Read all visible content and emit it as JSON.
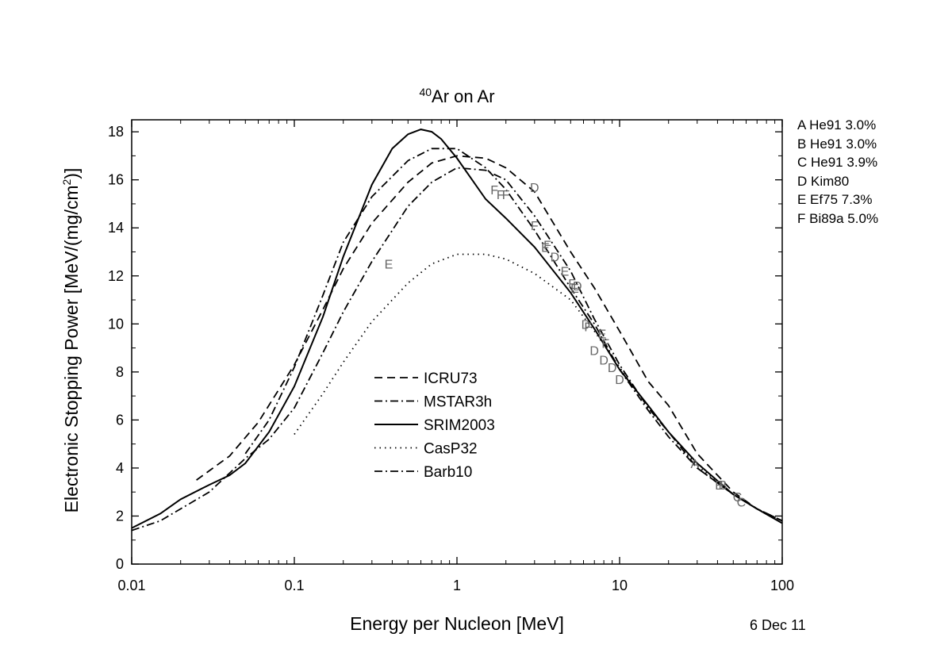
{
  "chart_data": {
    "type": "line",
    "title_sup": "40",
    "title_main": "Ar on Ar",
    "xlabel": "Energy per Nucleon [MeV]",
    "ylabel_prefix": "Electronic Stopping Power [MeV/(mg/cm",
    "ylabel_sup": "2",
    "ylabel_suffix": ")]",
    "x_scale": "log",
    "xlim": [
      0.01,
      100
    ],
    "ylim": [
      0,
      18.5
    ],
    "x_ticks": [
      0.01,
      0.1,
      1,
      10,
      100
    ],
    "x_tick_labels": [
      "0.01",
      "0.1",
      "1",
      "10",
      "100"
    ],
    "y_ticks": [
      0,
      2,
      4,
      6,
      8,
      10,
      12,
      14,
      16,
      18
    ],
    "y_tick_labels": [
      "0",
      "2",
      "4",
      "6",
      "8",
      "10",
      "12",
      "14",
      "16",
      "18"
    ],
    "grid": false,
    "legend_position": "center-bottom",
    "series": [
      {
        "name": "ICRU73",
        "style": "dash",
        "x": [
          0.025,
          0.04,
          0.06,
          0.1,
          0.15,
          0.2,
          0.3,
          0.5,
          0.7,
          1.0,
          1.5,
          2.0,
          3.0,
          5.0,
          7.0,
          10,
          15,
          20,
          30,
          50,
          70,
          100
        ],
        "y": [
          3.5,
          4.5,
          5.9,
          8.3,
          10.6,
          12.3,
          14.2,
          15.9,
          16.7,
          17.0,
          16.9,
          16.5,
          15.5,
          13.0,
          11.5,
          9.7,
          7.6,
          6.6,
          4.6,
          3.0,
          2.3,
          1.8
        ]
      },
      {
        "name": "MSTAR3h",
        "style": "dashdot",
        "x": [
          0.05,
          0.07,
          0.1,
          0.15,
          0.2,
          0.3,
          0.5,
          0.7,
          1.0,
          1.5,
          2.0,
          3.0,
          5.0,
          7.0,
          10,
          15,
          20,
          30,
          50,
          70,
          100
        ],
        "y": [
          4.6,
          6.0,
          8.2,
          11.2,
          13.4,
          15.3,
          16.8,
          17.3,
          17.3,
          16.5,
          15.6,
          13.9,
          11.5,
          10.0,
          8.1,
          6.4,
          5.3,
          4.0,
          2.9,
          2.3,
          1.8
        ]
      },
      {
        "name": "SRIM2003",
        "style": "solid",
        "x": [
          0.01,
          0.015,
          0.02,
          0.03,
          0.04,
          0.05,
          0.07,
          0.1,
          0.15,
          0.2,
          0.3,
          0.4,
          0.5,
          0.6,
          0.7,
          0.8,
          1.0,
          1.5,
          2.0,
          3.0,
          5.0,
          7.0,
          10,
          15,
          20,
          30,
          50,
          70,
          100
        ],
        "y": [
          1.5,
          2.1,
          2.7,
          3.3,
          3.7,
          4.2,
          5.5,
          7.4,
          10.3,
          12.8,
          15.8,
          17.3,
          17.9,
          18.1,
          18.0,
          17.7,
          16.9,
          15.2,
          14.4,
          13.2,
          11.3,
          9.8,
          8.1,
          6.6,
          5.5,
          4.2,
          2.9,
          2.3,
          1.7
        ]
      },
      {
        "name": "CasP32",
        "style": "dot",
        "x": [
          0.1,
          0.15,
          0.2,
          0.3,
          0.5,
          0.7,
          1.0,
          1.5,
          2.0,
          3.0,
          5.0,
          7.0,
          10,
          15,
          20,
          30,
          50,
          70,
          100
        ],
        "y": [
          5.4,
          7.1,
          8.4,
          10.1,
          11.7,
          12.5,
          12.9,
          12.9,
          12.7,
          12.1,
          11.0,
          9.7,
          8.2,
          6.5,
          5.5,
          4.1,
          2.9,
          2.3,
          1.8
        ]
      },
      {
        "name": "Barb10",
        "style": "dashdot",
        "x": [
          0.01,
          0.015,
          0.02,
          0.03,
          0.05,
          0.07,
          0.1,
          0.15,
          0.2,
          0.3,
          0.5,
          0.7,
          1.0,
          1.5,
          2.0,
          3.0,
          5.0,
          7.0,
          10,
          15,
          20,
          30,
          50,
          70,
          100
        ],
        "y": [
          1.4,
          1.8,
          2.3,
          3.0,
          4.4,
          5.2,
          6.5,
          8.8,
          10.5,
          12.6,
          14.9,
          15.9,
          16.5,
          16.4,
          16.0,
          14.5,
          12.2,
          10.2,
          8.3,
          6.5,
          5.5,
          4.0,
          2.9,
          2.3,
          1.8
        ]
      }
    ],
    "markers": [
      {
        "label": "A",
        "x": 29,
        "y": 4.2
      },
      {
        "label": "B",
        "x": 41,
        "y": 3.3
      },
      {
        "label": "B",
        "x": 43,
        "y": 3.3
      },
      {
        "label": "C",
        "x": 53,
        "y": 2.8
      },
      {
        "label": "C",
        "x": 56,
        "y": 2.6
      },
      {
        "label": "D",
        "x": 3.0,
        "y": 15.7
      },
      {
        "label": "D",
        "x": 4.0,
        "y": 12.8
      },
      {
        "label": "D",
        "x": 5.5,
        "y": 11.6
      },
      {
        "label": "D",
        "x": 6.2,
        "y": 10.0
      },
      {
        "label": "D",
        "x": 7.0,
        "y": 8.9
      },
      {
        "label": "D",
        "x": 8.0,
        "y": 8.5
      },
      {
        "label": "D",
        "x": 9.0,
        "y": 8.2
      },
      {
        "label": "D",
        "x": 10.0,
        "y": 7.7
      },
      {
        "label": "E",
        "x": 0.38,
        "y": 12.5
      },
      {
        "label": "E",
        "x": 3.5,
        "y": 13.2
      },
      {
        "label": "E",
        "x": 4.6,
        "y": 12.2
      },
      {
        "label": "E",
        "x": 5.3,
        "y": 11.5
      },
      {
        "label": "E",
        "x": 7.8,
        "y": 9.6
      },
      {
        "label": "F",
        "x": 1.7,
        "y": 15.6
      },
      {
        "label": "F",
        "x": 1.85,
        "y": 15.4
      },
      {
        "label": "F",
        "x": 2.0,
        "y": 15.4
      },
      {
        "label": "F",
        "x": 3.0,
        "y": 14.1
      },
      {
        "label": "F",
        "x": 3.6,
        "y": 13.3
      },
      {
        "label": "F",
        "x": 5.1,
        "y": 11.7
      },
      {
        "label": "F",
        "x": 6.4,
        "y": 9.9
      },
      {
        "label": "F",
        "x": 8.2,
        "y": 9.2
      }
    ]
  },
  "references": [
    "A He91  3.0%",
    "B He91  3.0%",
    "C He91  3.9%",
    "D Kim80",
    "E Ef75  7.3%",
    "F Bi89a 5.0%"
  ],
  "date_stamp": "6 Dec 11"
}
